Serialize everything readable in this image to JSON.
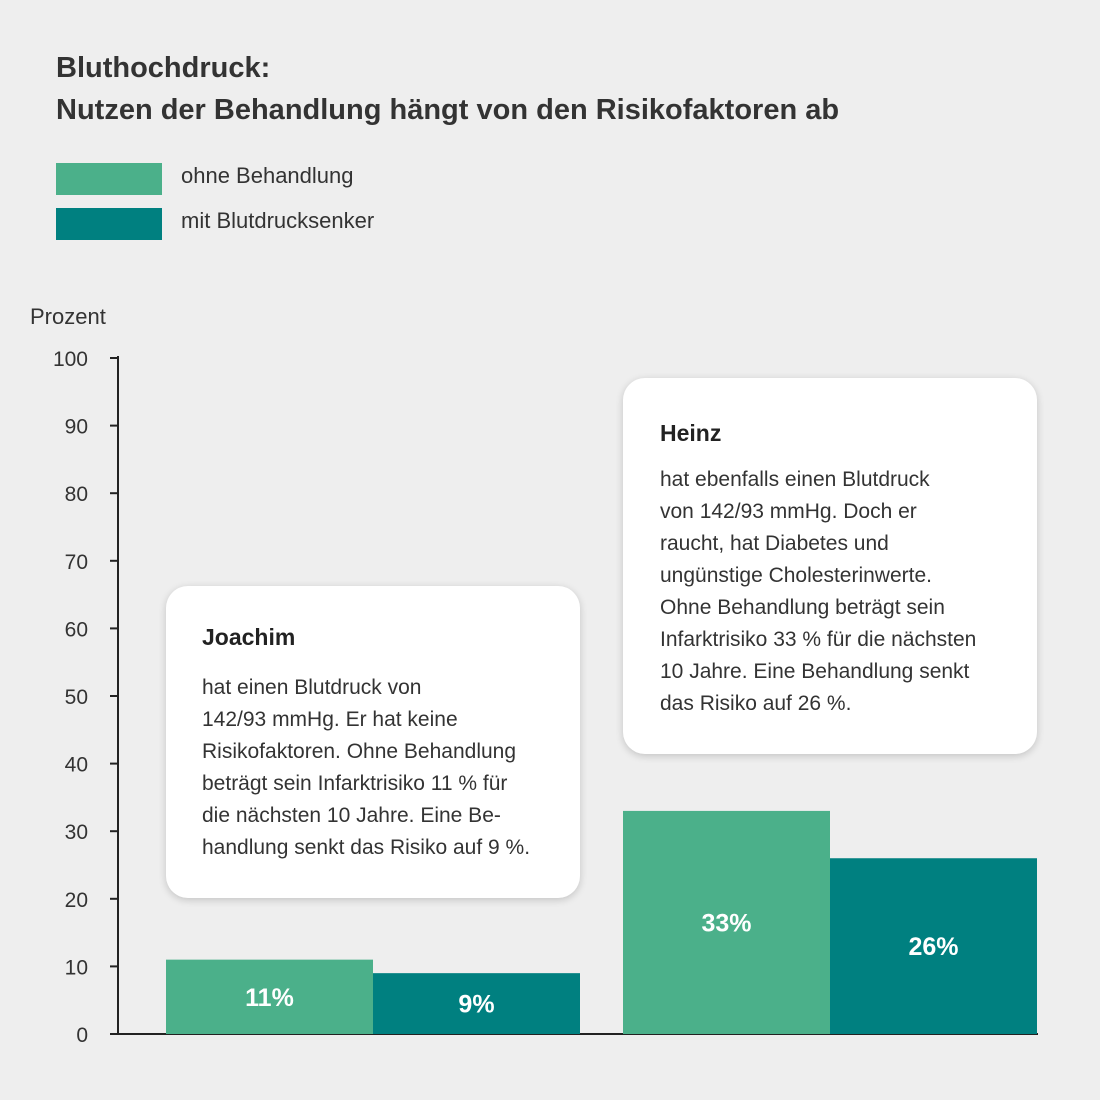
{
  "title": {
    "line1": "Bluthochdruck:",
    "line2": "Nutzen der Behandlung hängt von den Risikofaktoren ab"
  },
  "legend": [
    {
      "label": "ohne Behandlung",
      "color": "#4bb08a"
    },
    {
      "label": "mit Blutdrucksenker",
      "color": "#008080"
    }
  ],
  "callouts": [
    {
      "name": "Joachim",
      "lines": [
        "hat einen Blutdruck von",
        "142/93 mmHg. Er hat keine",
        "Risikofaktoren. Ohne Behandlung",
        "beträgt sein Infarktrisiko 11 % für",
        "die nächsten 10 Jahre. Eine Be-",
        "handlung senkt das Risiko auf 9 %."
      ]
    },
    {
      "name": "Heinz",
      "lines": [
        "hat ebenfalls einen Blutdruck",
        "von 142/93 mmHg. Doch er",
        "raucht, hat Diabetes und",
        "ungünstige Cholesterinwerte.",
        "Ohne Behandlung beträgt sein",
        "Infarktrisiko 33 % für die nächsten",
        "10 Jahre. Eine Behandlung senkt",
        "das Risiko auf 26 %."
      ]
    }
  ],
  "chart_data": {
    "type": "bar",
    "ylabel": "Prozent",
    "ylim": [
      0,
      100
    ],
    "yticks": [
      0,
      10,
      20,
      30,
      40,
      50,
      60,
      70,
      80,
      90,
      100
    ],
    "grid": false,
    "legend_position": "top-left",
    "categories": [
      "Joachim",
      "Heinz"
    ],
    "series": [
      {
        "name": "ohne Behandlung",
        "color": "#4bb08a",
        "values": [
          11,
          33
        ],
        "labels": [
          "11%",
          "33%"
        ]
      },
      {
        "name": "mit Blutdrucksenker",
        "color": "#008080",
        "values": [
          9,
          26
        ],
        "labels": [
          "9%",
          "26%"
        ]
      }
    ]
  }
}
